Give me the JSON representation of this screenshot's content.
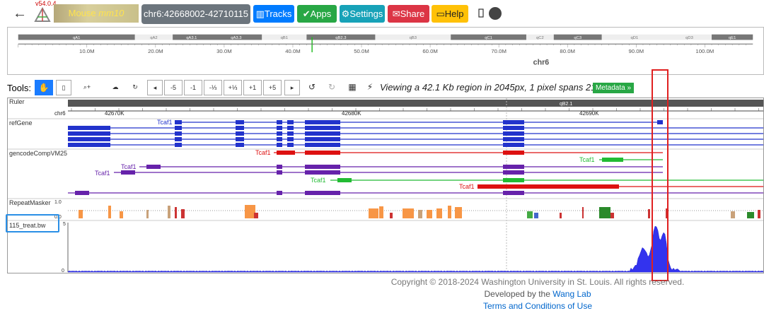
{
  "nav": {
    "version": "v54.0.4",
    "genome_name": "Mouse",
    "genome_build": "mm10",
    "coordinates": "chr6:42668002-42710115",
    "tracks": "Tracks",
    "apps": "Apps",
    "settings": "Settings",
    "share": "Share",
    "help": "Help"
  },
  "ideogram": {
    "chrom": "chr6",
    "bands": [
      "qA1",
      "qA2",
      "qA3.1",
      "qA3.3",
      "qB1",
      "qB2.3",
      "qB3",
      "qC1",
      "qC2",
      "qC3",
      "qD1",
      "qD3",
      "qE1"
    ],
    "ticks": [
      "10.0M",
      "20.0M",
      "30.0M",
      "40.0M",
      "50.0M",
      "60.0M",
      "70.0M",
      "80.0M",
      "90.0M",
      "100.0M"
    ]
  },
  "tools": {
    "label": "Tools:",
    "zoom": [
      "-5",
      "-1",
      "-⅓",
      "+⅓",
      "+1",
      "+5"
    ],
    "viewing": "Viewing a 42.1 Kb region in 2045px, 1 pixel spans 21 bp",
    "metadata": "Metadata »"
  },
  "tracks": {
    "ruler": "Ruler",
    "ruler_chrom": "chr6",
    "ruler_band": "qB2.1",
    "ruler_ticks": [
      "42670K",
      "42680K",
      "42690K"
    ],
    "refgene": "refGene",
    "gencode": "gencodeCompVM25",
    "gene": "Tcaf1",
    "repeatmasker": "RepeatMasker",
    "rm_scale_top": "1.0",
    "rm_scale_bottom": "0.0",
    "bw": "115_treat.bw",
    "bw_scale_top": "5",
    "bw_scale_bottom": "0"
  },
  "footer": {
    "copyright": "Copyright © 2018-2024 Washington University in St. Louis. All rights reserved.",
    "developed": "Developed by the",
    "lab": "Wang Lab",
    "terms": "Terms and Conditions of Use"
  },
  "colors": {
    "refgene": "#2233cc",
    "gencode_red": "#dd1111",
    "gencode_purple": "#6622aa",
    "gencode_green": "#22bb33",
    "bigwig": "#3333ee",
    "highlight_box": "#e02020",
    "label_box": "#2a8fe6"
  }
}
